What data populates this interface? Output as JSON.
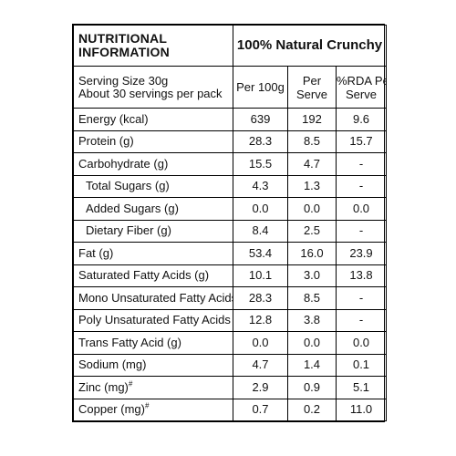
{
  "header": {
    "title_line1": "NUTRITIONAL",
    "title_line2": "INFORMATION",
    "product": "100% Natural Crunchy"
  },
  "subheader": {
    "serving_size": "Serving Size 30g",
    "servings_per_pack": "About 30 servings per pack",
    "col_per100": "Per 100g",
    "col_per_serve_1": "Per",
    "col_per_serve_2": "Serve",
    "col_rda_1": "%RDA Per",
    "col_rda_2": "Serve"
  },
  "rows": [
    {
      "name": "Energy (kcal)",
      "per100": "639",
      "serve": "192",
      "rda": "9.6"
    },
    {
      "name": "Protein (g)",
      "per100": "28.3",
      "serve": "8.5",
      "rda": "15.7"
    },
    {
      "name": "Carbohydrate (g)",
      "per100": "15.5",
      "serve": "4.7",
      "rda": "-"
    },
    {
      "name": "Total Sugars (g)",
      "per100": "4.3",
      "serve": "1.3",
      "rda": "-"
    },
    {
      "name": "Added Sugars (g)",
      "per100": "0.0",
      "serve": "0.0",
      "rda": "0.0"
    },
    {
      "name": "Dietary Fiber (g)",
      "per100": "8.4",
      "serve": "2.5",
      "rda": "-"
    },
    {
      "name": "Fat (g)",
      "per100": "53.4",
      "serve": "16.0",
      "rda": "23.9"
    },
    {
      "name": "Saturated Fatty Acids (g)",
      "per100": "10.1",
      "serve": "3.0",
      "rda": "13.8"
    },
    {
      "name": "Mono Unsaturated Fatty Acids (g)",
      "per100": "28.3",
      "serve": "8.5",
      "rda": "-"
    },
    {
      "name": "Poly Unsaturated Fatty Acids (g)",
      "per100": "12.8",
      "serve": "3.8",
      "rda": "-"
    },
    {
      "name": "Trans Fatty Acid (g)",
      "per100": "0.0",
      "serve": "0.0",
      "rda": "0.0"
    },
    {
      "name": "Sodium (mg)",
      "per100": "4.7",
      "serve": "1.4",
      "rda": "0.1"
    },
    {
      "name": "Zinc (mg)",
      "mark": "#",
      "per100": "2.9",
      "serve": "0.9",
      "rda": "5.1"
    },
    {
      "name": "Copper (mg)",
      "mark": "#",
      "per100": "0.7",
      "serve": "0.2",
      "rda": "11.0"
    }
  ]
}
